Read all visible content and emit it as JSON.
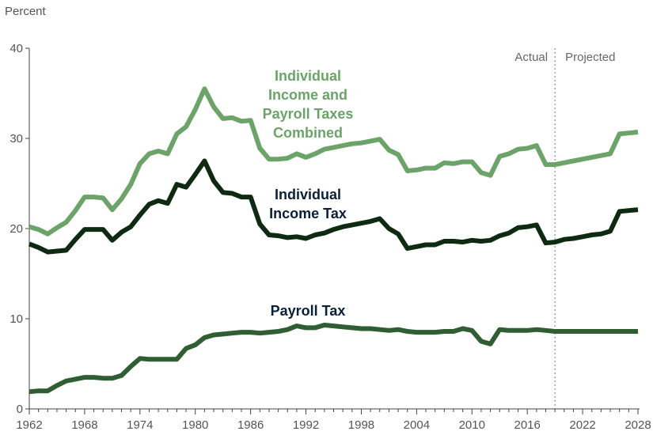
{
  "chart_data": {
    "type": "line",
    "ylabel": "Percent",
    "ylim": [
      0,
      40
    ],
    "yticks": [
      "0",
      "10",
      "20",
      "30",
      "40"
    ],
    "xlim": [
      1962,
      2028
    ],
    "xticks": [
      "1962",
      "1968",
      "1974",
      "1980",
      "1986",
      "1992",
      "1998",
      "2004",
      "2010",
      "2016",
      "2022",
      "2028"
    ],
    "divider_year": 2019,
    "period_labels": {
      "actual": "Actual",
      "projected": "Projected"
    },
    "colors": {
      "combined": "#6ba368",
      "income": "#0e2a12",
      "payroll": "#2e5e32",
      "axis": "#444444",
      "divider": "#777777"
    },
    "series": [
      {
        "name": "Individual Income and Payroll Taxes Combined",
        "label_lines": [
          "Individual",
          "Income and",
          "Payroll Taxes",
          "Combined"
        ],
        "color_key": "combined",
        "x": [
          1962,
          1963,
          1964,
          1965,
          1966,
          1967,
          1968,
          1969,
          1970,
          1971,
          1972,
          1973,
          1974,
          1975,
          1976,
          1977,
          1978,
          1979,
          1980,
          1981,
          1982,
          1983,
          1984,
          1985,
          1986,
          1987,
          1988,
          1989,
          1990,
          1991,
          1992,
          1993,
          1994,
          1995,
          1996,
          1997,
          1998,
          1999,
          2000,
          2001,
          2002,
          2003,
          2004,
          2005,
          2006,
          2007,
          2008,
          2009,
          2010,
          2011,
          2012,
          2013,
          2014,
          2015,
          2016,
          2017,
          2018,
          2019,
          2020,
          2021,
          2022,
          2023,
          2024,
          2025,
          2026,
          2027,
          2028
        ],
        "values": [
          20.2,
          19.9,
          19.4,
          20.1,
          20.7,
          22.0,
          23.5,
          23.5,
          23.4,
          22.1,
          23.3,
          24.9,
          27.2,
          28.3,
          28.6,
          28.3,
          30.5,
          31.3,
          33.2,
          35.5,
          33.5,
          32.2,
          32.3,
          31.9,
          32.0,
          28.9,
          27.7,
          27.7,
          27.8,
          28.3,
          27.9,
          28.3,
          28.8,
          29.0,
          29.2,
          29.4,
          29.5,
          29.7,
          29.9,
          28.7,
          28.2,
          26.4,
          26.5,
          26.7,
          26.7,
          27.3,
          27.2,
          27.4,
          27.4,
          26.2,
          25.9,
          28.0,
          28.3,
          28.8,
          28.9,
          29.2,
          27.1,
          27.1,
          27.3,
          27.5,
          27.7,
          27.9,
          28.1,
          28.3,
          30.5,
          30.6,
          30.7
        ]
      },
      {
        "name": "Individual Income Tax",
        "label_lines": [
          "Individual",
          "Income Tax"
        ],
        "color_key": "income",
        "x": [
          1962,
          1963,
          1964,
          1965,
          1966,
          1967,
          1968,
          1969,
          1970,
          1971,
          1972,
          1973,
          1974,
          1975,
          1976,
          1977,
          1978,
          1979,
          1980,
          1981,
          1982,
          1983,
          1984,
          1985,
          1986,
          1987,
          1988,
          1989,
          1990,
          1991,
          1992,
          1993,
          1994,
          1995,
          1996,
          1997,
          1998,
          1999,
          2000,
          2001,
          2002,
          2003,
          2004,
          2005,
          2006,
          2007,
          2008,
          2009,
          2010,
          2011,
          2012,
          2013,
          2014,
          2015,
          2016,
          2017,
          2018,
          2019,
          2020,
          2021,
          2022,
          2023,
          2024,
          2025,
          2026,
          2027,
          2028
        ],
        "values": [
          18.3,
          17.9,
          17.4,
          17.5,
          17.6,
          18.8,
          19.9,
          19.9,
          19.9,
          18.7,
          19.6,
          20.2,
          21.5,
          22.7,
          23.1,
          22.8,
          24.9,
          24.6,
          26.0,
          27.5,
          25.3,
          24.0,
          23.9,
          23.5,
          23.5,
          20.5,
          19.3,
          19.2,
          19.0,
          19.1,
          18.9,
          19.3,
          19.5,
          19.9,
          20.2,
          20.4,
          20.6,
          20.8,
          21.1,
          20.0,
          19.4,
          17.8,
          18.0,
          18.2,
          18.2,
          18.6,
          18.6,
          18.5,
          18.7,
          18.6,
          18.7,
          19.2,
          19.5,
          20.1,
          20.2,
          20.4,
          18.4,
          18.5,
          18.8,
          18.9,
          19.1,
          19.3,
          19.4,
          19.7,
          21.9,
          22.0,
          22.1
        ]
      },
      {
        "name": "Payroll Tax",
        "label_lines": [
          "Payroll Tax"
        ],
        "color_key": "payroll",
        "x": [
          1962,
          1963,
          1964,
          1965,
          1966,
          1967,
          1968,
          1969,
          1970,
          1971,
          1972,
          1973,
          1974,
          1975,
          1976,
          1977,
          1978,
          1979,
          1980,
          1981,
          1982,
          1983,
          1984,
          1985,
          1986,
          1987,
          1988,
          1989,
          1990,
          1991,
          1992,
          1993,
          1994,
          1995,
          1996,
          1997,
          1998,
          1999,
          2000,
          2001,
          2002,
          2003,
          2004,
          2005,
          2006,
          2007,
          2008,
          2009,
          2010,
          2011,
          2012,
          2013,
          2014,
          2015,
          2016,
          2017,
          2018,
          2019,
          2020,
          2021,
          2022,
          2023,
          2024,
          2025,
          2026,
          2027,
          2028
        ],
        "values": [
          1.9,
          2.0,
          2.0,
          2.6,
          3.1,
          3.3,
          3.5,
          3.5,
          3.4,
          3.4,
          3.7,
          4.7,
          5.6,
          5.5,
          5.5,
          5.5,
          5.5,
          6.7,
          7.1,
          7.9,
          8.2,
          8.3,
          8.4,
          8.5,
          8.5,
          8.4,
          8.5,
          8.6,
          8.8,
          9.2,
          9.0,
          9.0,
          9.3,
          9.2,
          9.1,
          9.0,
          8.9,
          8.9,
          8.8,
          8.7,
          8.8,
          8.6,
          8.5,
          8.5,
          8.5,
          8.6,
          8.6,
          8.9,
          8.7,
          7.5,
          7.2,
          8.8,
          8.7,
          8.7,
          8.7,
          8.8,
          8.7,
          8.6,
          8.6,
          8.6,
          8.6,
          8.6,
          8.6,
          8.6,
          8.6,
          8.6,
          8.6
        ]
      }
    ]
  }
}
